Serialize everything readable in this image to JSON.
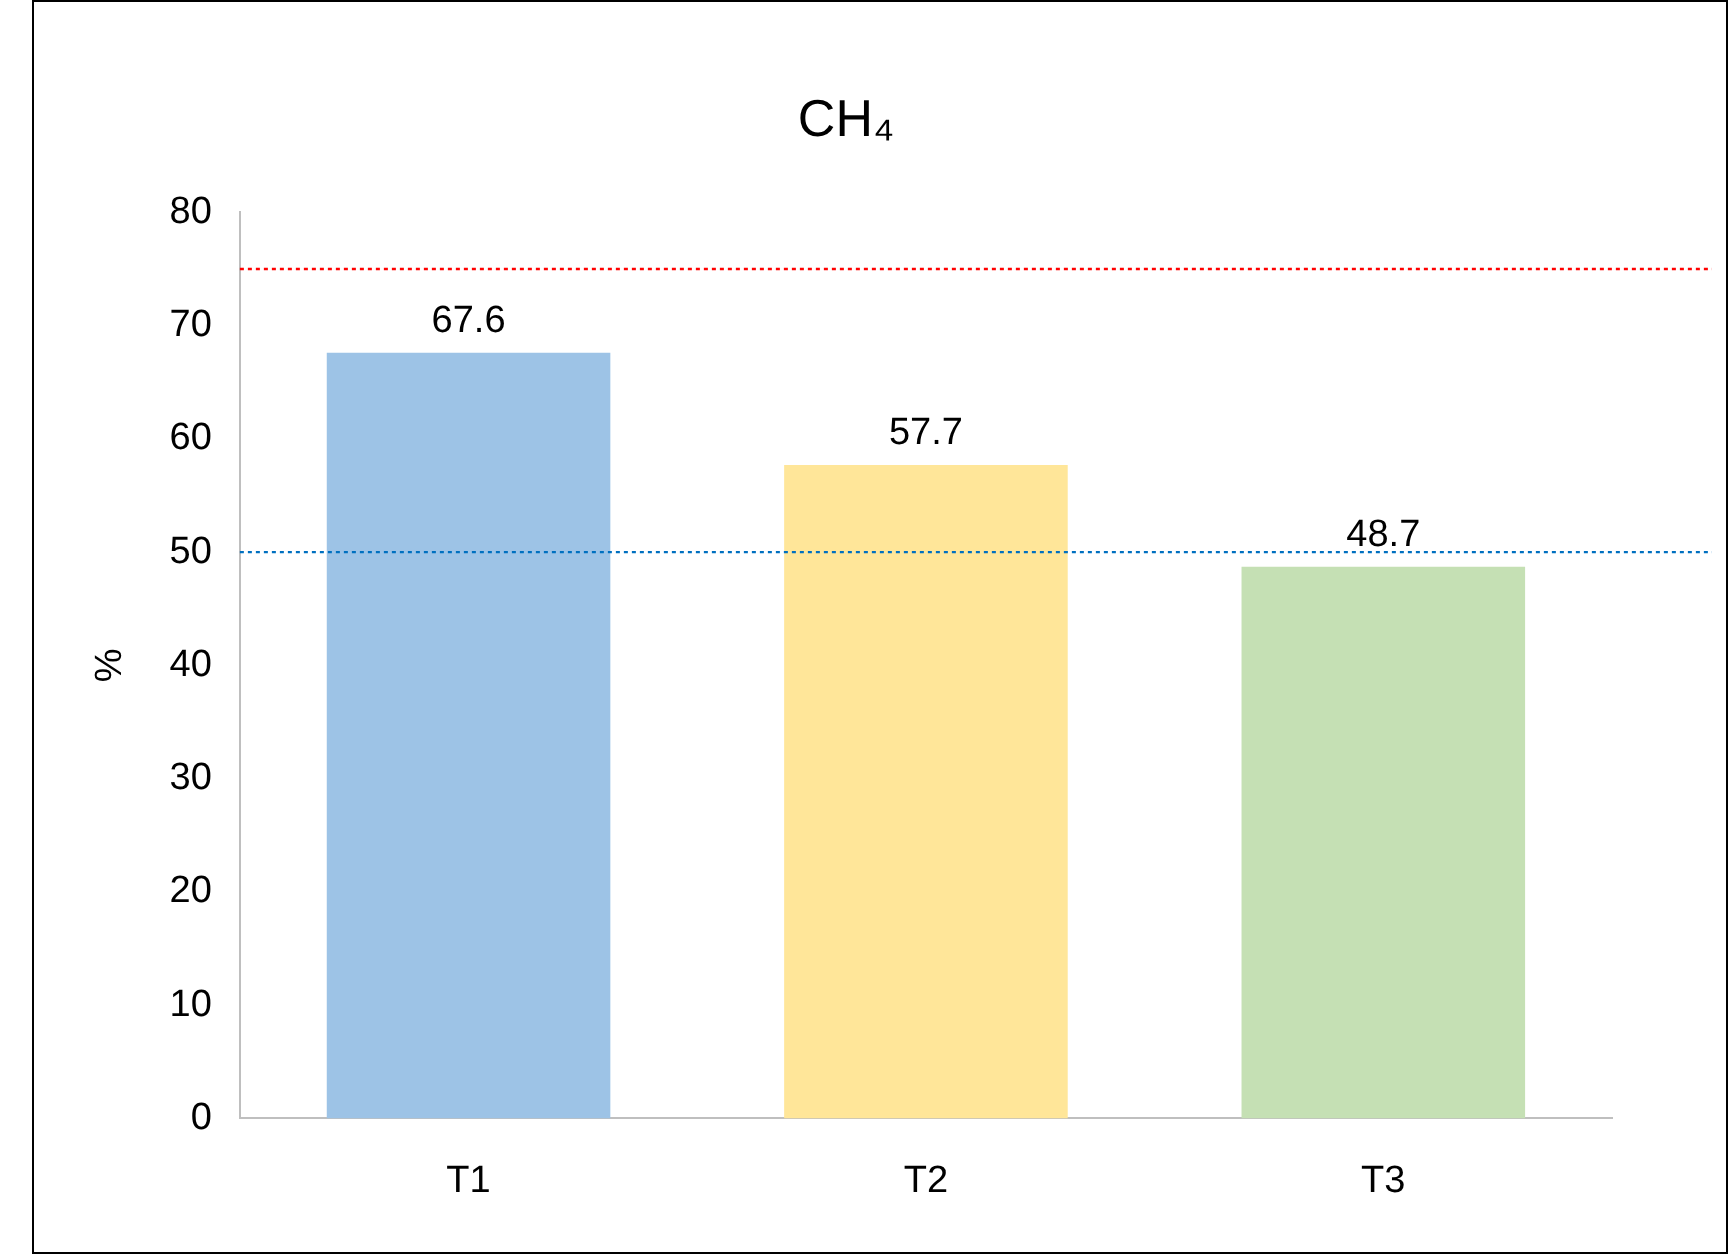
{
  "chart_data": {
    "type": "bar",
    "title": "CH₄",
    "ylabel": "%",
    "categories": [
      "T1",
      "T2",
      "T3"
    ],
    "values": [
      67.6,
      57.7,
      48.7
    ],
    "colors": [
      "#9dc3e6",
      "#ffe699",
      "#c5e0b4"
    ],
    "ylim": [
      0,
      80
    ],
    "yticks": [
      0,
      10,
      20,
      30,
      40,
      50,
      60,
      70,
      80
    ],
    "grid": false,
    "legend": false,
    "data_labels": true,
    "ref_lines": [
      {
        "axis": "y",
        "value": 75,
        "color": "#ff0000",
        "line_style": "dotted"
      },
      {
        "axis": "y",
        "value": 50,
        "color": "#0070c0",
        "line_style": "dotted"
      }
    ]
  }
}
